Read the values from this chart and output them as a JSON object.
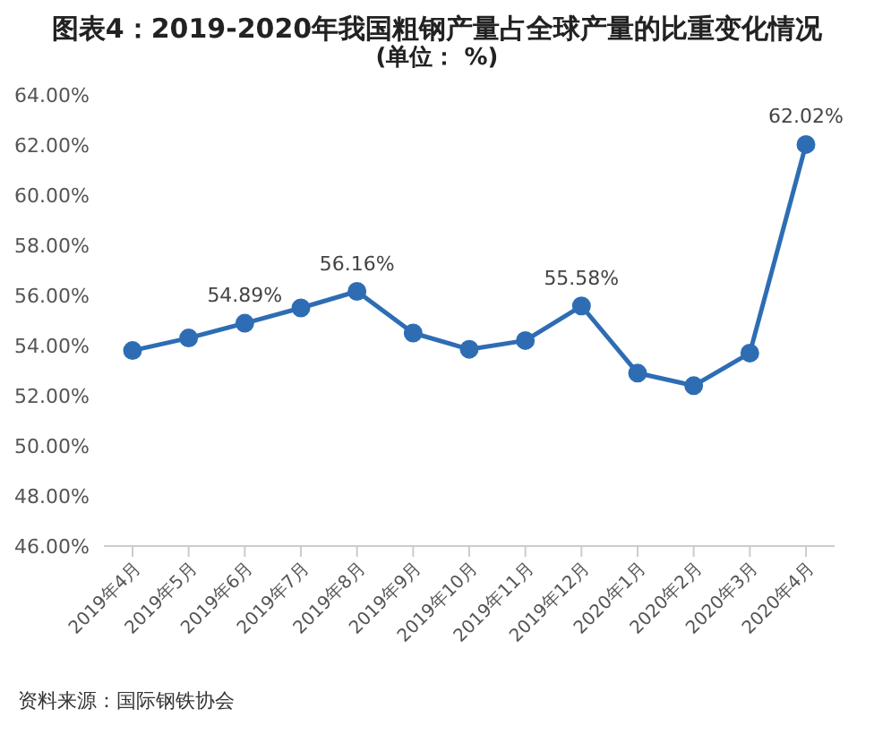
{
  "chart_data": {
    "type": "line",
    "title": "图表4：2019-2020年我国粗钢产量占全球产量的比重变化情况",
    "subtitle": "(单位： %)",
    "categories": [
      "2019年4月",
      "2019年5月",
      "2019年6月",
      "2019年7月",
      "2019年8月",
      "2019年9月",
      "2019年10月",
      "2019年11月",
      "2019年12月",
      "2020年1月",
      "2020年2月",
      "2020年3月",
      "2020年4月"
    ],
    "series": [
      {
        "color": "#2e6db4",
        "values": [
          53.8,
          54.3,
          54.89,
          55.5,
          56.16,
          54.5,
          53.85,
          54.2,
          55.58,
          52.9,
          52.4,
          53.7,
          62.02
        ],
        "value_labels": [
          null,
          null,
          "54.89%",
          null,
          "56.16%",
          null,
          null,
          null,
          "55.58%",
          null,
          null,
          null,
          "62.02%"
        ]
      }
    ],
    "ylim": [
      46,
      64
    ],
    "yticks": [
      {
        "value": 46,
        "label": "46.00%"
      },
      {
        "value": 48,
        "label": "48.00%"
      },
      {
        "value": 50,
        "label": "50.00%"
      },
      {
        "value": 52,
        "label": "52.00%"
      },
      {
        "value": 54,
        "label": "54.00%"
      },
      {
        "value": 56,
        "label": "56.00%"
      },
      {
        "value": 58,
        "label": "58.00%"
      },
      {
        "value": 60,
        "label": "60.00%"
      },
      {
        "value": 62,
        "label": "62.00%"
      },
      {
        "value": 64,
        "label": "64.00%"
      }
    ],
    "grid": false,
    "legend": false,
    "marker": "circle",
    "line_style": "solid",
    "annotations": [
      "资料来源：国际钢铁协会"
    ]
  }
}
